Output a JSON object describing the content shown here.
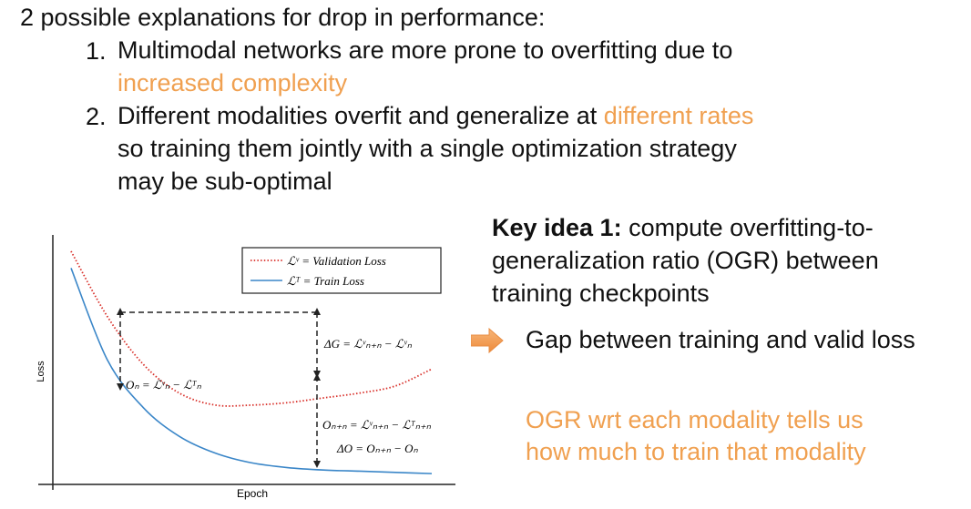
{
  "heading": "2 possible explanations for drop in performance:",
  "points": [
    {
      "num": "1.",
      "lines": [
        {
          "parts": [
            {
              "text": "Multimodal networks are more prone to overfitting due to",
              "highlight": false
            }
          ]
        },
        {
          "parts": [
            {
              "text": "increased complexity",
              "highlight": true
            }
          ]
        }
      ]
    },
    {
      "num": "2.",
      "lines": [
        {
          "parts": [
            {
              "text": "Different modalities overfit and generalize at ",
              "highlight": false
            },
            {
              "text": "different rates",
              "highlight": true
            }
          ]
        },
        {
          "parts": [
            {
              "text": "so training them jointly with a single optimization strategy",
              "highlight": false
            }
          ]
        },
        {
          "parts": [
            {
              "text": "may be sub-optimal",
              "highlight": false
            }
          ]
        }
      ]
    }
  ],
  "key_idea": {
    "bold": "Key idea 1:",
    "line1_rest": " compute overfitting-to-",
    "line2": "generalization ratio (OGR) between",
    "line3": "training checkpoints"
  },
  "gap_text": "Gap between training and valid loss",
  "ogr_text": {
    "line1": "OGR wrt each modality tells us",
    "line2": "how much to train that modality"
  },
  "colors": {
    "accent": "#f0a050",
    "train": "#3a86c8",
    "validation": "#d9312b"
  },
  "chart_data": {
    "type": "line",
    "xlabel": "Epoch",
    "ylabel": "Loss",
    "legend": {
      "placement": "top-right",
      "validation": "ℒᵛ = Validation Loss",
      "train": "ℒᵀ = Train Loss"
    },
    "annotations": {
      "o_n": "Oₙ = ℒᵛₙ − ℒᵀₙ",
      "delta_g": "ΔG = ℒᵛₙ₊ₙ − ℒᵛₙ",
      "o_n_plus_n": "Oₙ₊ₙ = ℒᵛₙ₊ₙ − ℒᵀₙ₊ₙ",
      "delta_o": "ΔO = Oₙ₊ₙ − Oₙ"
    },
    "series": [
      {
        "name": "Validation Loss",
        "style": "dotted",
        "x": [
          0,
          0.1,
          0.2,
          0.3,
          0.4,
          0.5,
          0.6,
          0.7,
          0.8,
          0.9,
          1.0
        ],
        "y": [
          0.97,
          0.7,
          0.5,
          0.38,
          0.33,
          0.33,
          0.34,
          0.36,
          0.38,
          0.41,
          0.48
        ]
      },
      {
        "name": "Train Loss",
        "style": "solid",
        "x": [
          0,
          0.1,
          0.2,
          0.3,
          0.4,
          0.5,
          0.6,
          0.7,
          0.8,
          0.9,
          1.0
        ],
        "y": [
          0.9,
          0.52,
          0.32,
          0.2,
          0.13,
          0.09,
          0.07,
          0.06,
          0.055,
          0.05,
          0.045
        ]
      }
    ]
  }
}
